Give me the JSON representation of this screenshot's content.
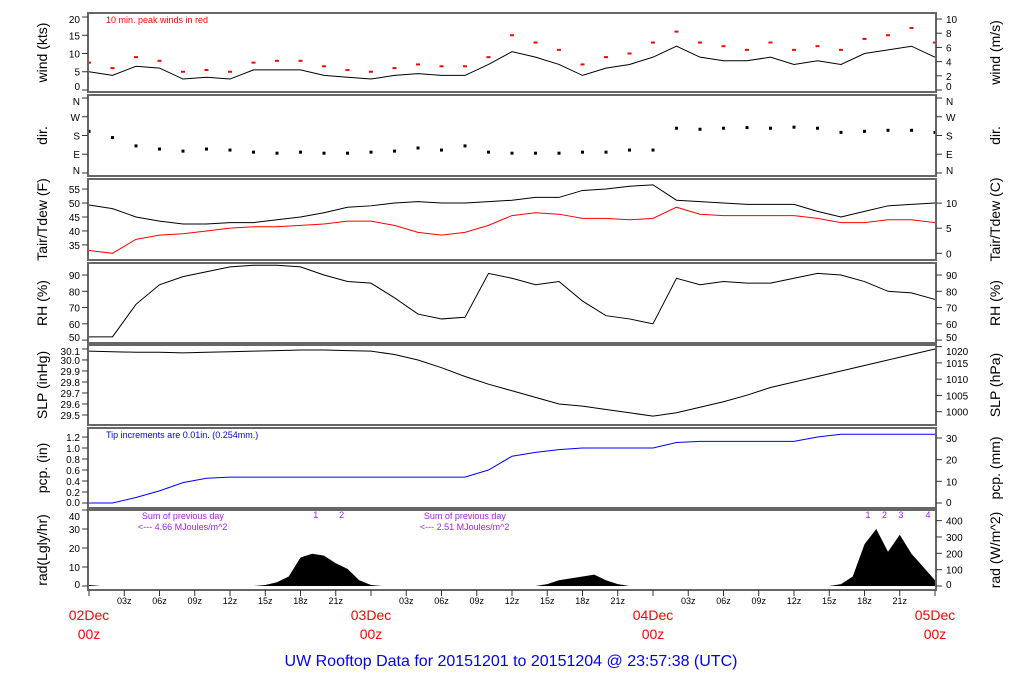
{
  "title": "UW Rooftop Data for 20151201  to  20151204 @ 23:57:38  (UTC)",
  "colors": {
    "title": "#0000ff",
    "dates": "#ff0000",
    "peak": "#ff0000",
    "dew": "#ff0000",
    "pcp": "#0000ff",
    "rad_note": "#a020f0",
    "line": "#000000"
  },
  "chart_data": {
    "type": "line",
    "x_unit": "hours since 02Dec 00z",
    "time_axis": {
      "dates": [
        {
          "h": 0,
          "date": "02Dec",
          "hour": "00z"
        },
        {
          "h": 24,
          "date": "03Dec",
          "hour": "00z"
        },
        {
          "h": 48,
          "date": "04Dec",
          "hour": "00z"
        },
        {
          "h": 72,
          "date": "05Dec",
          "hour": "00z"
        }
      ],
      "hour_ticks": [
        "03z",
        "06z",
        "09z",
        "12z",
        "15z",
        "18z",
        "21z"
      ]
    },
    "hours_2h": [
      0,
      2,
      4,
      6,
      8,
      10,
      12,
      14,
      16,
      18,
      20,
      22,
      24,
      26,
      28,
      30,
      32,
      34,
      36,
      38,
      40,
      42,
      44,
      46,
      48,
      50,
      52,
      54,
      56,
      58,
      60,
      62,
      64,
      66,
      68,
      70,
      72
    ],
    "panels": [
      {
        "key": "wind",
        "ylabel_left": "wind (kts)",
        "ylabel_right": "wind (m/s)",
        "ylim": [
          -0.55,
          21.1
        ],
        "ylim_right": [
          -0.28,
          10.85
        ],
        "ticks_left": [
          {
            "v": 0,
            "l": "0"
          },
          {
            "v": 5,
            "l": "5"
          },
          {
            "v": 10,
            "l": "10"
          },
          {
            "v": 15,
            "l": "15"
          },
          {
            "v": 20,
            "l": "20"
          }
        ],
        "ticks_right": [
          {
            "v": 0,
            "l": "0"
          },
          {
            "v": 2,
            "l": "2"
          },
          {
            "v": 4,
            "l": "4"
          },
          {
            "v": 6,
            "l": "6"
          },
          {
            "v": 8,
            "l": "8"
          },
          {
            "v": 10,
            "l": "10"
          }
        ],
        "note": "10 min. peak winds in red",
        "series": [
          {
            "style": "line",
            "color": "#000000",
            "values": [
              5,
              4,
              6.5,
              6,
              3,
              3.5,
              3,
              5.5,
              5.5,
              5.5,
              4,
              3.5,
              3,
              4,
              4.5,
              4,
              4,
              7,
              10.5,
              9,
              7,
              4,
              6,
              7,
              9,
              12,
              9,
              8,
              8,
              9,
              7,
              8,
              7,
              10,
              11,
              12,
              9
            ]
          },
          {
            "style": "dash",
            "color": "#ff0000",
            "values": [
              7.5,
              6,
              9,
              8,
              5,
              5.5,
              5,
              7.5,
              8,
              8,
              6.5,
              5.5,
              5,
              6,
              7,
              6.5,
              6.5,
              9,
              15,
              13,
              11,
              7,
              9,
              10,
              13,
              16,
              13,
              12,
              11,
              13,
              11,
              12,
              11,
              14,
              15,
              17,
              13
            ]
          }
        ]
      },
      {
        "key": "dir",
        "ylabel_left": "dir.",
        "ylabel_right": "dir.",
        "ylim": [
          -14.6,
          374.6
        ],
        "ylim_right": [
          -14.6,
          374.6
        ],
        "ticks_left": [
          {
            "v": 0,
            "l": "N"
          },
          {
            "v": 90,
            "l": "E"
          },
          {
            "v": 180,
            "l": "S"
          },
          {
            "v": 270,
            "l": "W"
          },
          {
            "v": 360,
            "l": "N"
          }
        ],
        "ticks_right": [
          {
            "v": 0,
            "l": "N"
          },
          {
            "v": 90,
            "l": "E"
          },
          {
            "v": 180,
            "l": "S"
          },
          {
            "v": 270,
            "l": "W"
          },
          {
            "v": 360,
            "l": "N"
          }
        ],
        "series": [
          {
            "style": "dots",
            "color": "#000000",
            "values": [
              200,
              170,
              130,
              115,
              105,
              115,
              110,
              100,
              95,
              100,
              95,
              95,
              100,
              105,
              120,
              110,
              130,
              100,
              95,
              95,
              95,
              100,
              100,
              110,
              110,
              215,
              210,
              215,
              218,
              215,
              220,
              215,
              195,
              200,
              205,
              205,
              195
            ]
          }
        ]
      },
      {
        "key": "temp",
        "ylabel_left": "Tair/Tdew (F)",
        "ylabel_right": "Tair/Tdew (C)",
        "ylim": [
          29.6,
          58.6
        ],
        "ylim_right": [
          -1.33,
          14.8
        ],
        "ticks_left": [
          {
            "v": 35,
            "l": "35"
          },
          {
            "v": 40,
            "l": "40"
          },
          {
            "v": 45,
            "l": "45"
          },
          {
            "v": 50,
            "l": "50"
          },
          {
            "v": 55,
            "l": "55"
          }
        ],
        "ticks_right": [
          {
            "v": 0,
            "l": "0"
          },
          {
            "v": 5,
            "l": "5"
          },
          {
            "v": 10,
            "l": "10"
          }
        ],
        "series": [
          {
            "name": "Tair",
            "style": "line",
            "color": "#000000",
            "values": [
              49.3,
              48,
              45,
              43.5,
              42.5,
              42.5,
              43,
              43,
              44,
              45,
              46.5,
              48.5,
              49,
              50,
              50.5,
              50,
              50,
              50.5,
              51,
              52,
              52,
              54.5,
              55,
              56,
              56.5,
              51,
              50.5,
              50,
              49.5,
              49.5,
              49.5,
              47,
              45,
              47,
              49,
              49.5,
              50
            ]
          },
          {
            "name": "Tdew",
            "style": "line",
            "color": "#ff0000",
            "values": [
              33,
              32,
              37,
              38.5,
              39,
              40,
              41,
              41.5,
              41.5,
              42,
              42.5,
              43.5,
              43.5,
              42,
              39.5,
              38.5,
              39.5,
              42,
              45.5,
              46.5,
              46,
              44.5,
              44.5,
              44,
              44.5,
              48.5,
              46,
              45.5,
              45.5,
              45.5,
              45.5,
              44.5,
              43,
              43,
              44,
              44,
              43
            ]
          }
        ]
      },
      {
        "key": "rh",
        "ylabel_left": "RH (%)",
        "ylabel_right": "RH (%)",
        "ylim": [
          48.2,
          97.4
        ],
        "ylim_right": [
          48.2,
          97.4
        ],
        "ticks_left": [
          {
            "v": 50,
            "l": "50"
          },
          {
            "v": 60,
            "l": "60"
          },
          {
            "v": 70,
            "l": "70"
          },
          {
            "v": 80,
            "l": "80"
          },
          {
            "v": 90,
            "l": "90"
          }
        ],
        "ticks_right": [
          {
            "v": 50,
            "l": "50"
          },
          {
            "v": 60,
            "l": "60"
          },
          {
            "v": 70,
            "l": "70"
          },
          {
            "v": 80,
            "l": "80"
          },
          {
            "v": 90,
            "l": "90"
          }
        ],
        "series": [
          {
            "style": "line",
            "color": "#000000",
            "values": [
              52,
              52,
              72,
              84,
              89,
              92,
              95,
              96,
              96,
              95,
              90,
              86,
              85,
              76,
              66,
              63,
              64,
              91,
              88,
              84,
              86,
              74,
              65,
              63,
              60,
              88,
              84,
              86,
              85,
              85,
              88,
              91,
              90,
              86,
              80,
              79,
              75
            ]
          }
        ]
      },
      {
        "key": "slp",
        "ylabel_left": "SLP (inHg)",
        "ylabel_right": "SLP (hPa)",
        "ylim": [
          29.409,
          30.136
        ],
        "ylim_right": [
          995.9,
          1020.5
        ],
        "ticks_left": [
          {
            "v": 29.5,
            "l": "29.5"
          },
          {
            "v": 29.6,
            "l": "29.6"
          },
          {
            "v": 29.7,
            "l": "29.7"
          },
          {
            "v": 29.8,
            "l": "29.8"
          },
          {
            "v": 29.9,
            "l": "29.9"
          },
          {
            "v": 30.0,
            "l": "30.0"
          },
          {
            "v": 30.1,
            "l": "30.1"
          }
        ],
        "ticks_right": [
          {
            "v": 1000,
            "l": "1000"
          },
          {
            "v": 1005,
            "l": "1005"
          },
          {
            "v": 1010,
            "l": "1010"
          },
          {
            "v": 1015,
            "l": "1015"
          },
          {
            "v": 1020,
            "l": "1020"
          }
        ],
        "series": [
          {
            "style": "line",
            "color": "#000000",
            "values": [
              30.08,
              30.075,
              30.07,
              30.07,
              30.065,
              30.07,
              30.075,
              30.08,
              30.085,
              30.09,
              30.09,
              30.085,
              30.08,
              30.05,
              30.0,
              29.93,
              29.85,
              29.78,
              29.72,
              29.66,
              29.6,
              29.58,
              29.55,
              29.52,
              29.49,
              29.52,
              29.57,
              29.62,
              29.68,
              29.75,
              29.8,
              29.85,
              29.9,
              29.95,
              30.0,
              30.05,
              30.1
            ]
          }
        ]
      },
      {
        "key": "pcp",
        "ylabel_left": "pcp. (in)",
        "ylabel_right": "pcp. (mm)",
        "ylim": [
          -0.091,
          1.364
        ],
        "ylim_right": [
          -2.31,
          34.6
        ],
        "ticks_left": [
          {
            "v": 0,
            "l": "0.0"
          },
          {
            "v": 0.2,
            "l": "0.2"
          },
          {
            "v": 0.4,
            "l": "0.4"
          },
          {
            "v": 0.6,
            "l": "0.6"
          },
          {
            "v": 0.8,
            "l": "0.8"
          },
          {
            "v": 1.0,
            "l": "1.0"
          },
          {
            "v": 1.2,
            "l": "1.2"
          }
        ],
        "ticks_right": [
          {
            "v": 0,
            "l": "0"
          },
          {
            "v": 10,
            "l": "10"
          },
          {
            "v": 20,
            "l": "20"
          },
          {
            "v": 30,
            "l": "30"
          }
        ],
        "note": "Tip increments are 0.01in. (0.254mm.)",
        "series": [
          {
            "style": "line",
            "color": "#0000ff",
            "values": [
              0,
              0,
              0.1,
              0.22,
              0.37,
              0.45,
              0.47,
              0.47,
              0.47,
              0.47,
              0.47,
              0.47,
              0.47,
              0.47,
              0.47,
              0.47,
              0.47,
              0.6,
              0.85,
              0.92,
              0.97,
              1.0,
              1.0,
              1.0,
              1.0,
              1.1,
              1.12,
              1.12,
              1.12,
              1.12,
              1.12,
              1.2,
              1.25,
              1.25,
              1.25,
              1.25,
              1.25
            ]
          }
        ]
      },
      {
        "key": "rad",
        "ylabel_left": "rad(Lgly/hr)",
        "ylabel_right": "rad (W/m^2)",
        "ylim": [
          -2.1,
          40
        ],
        "ylim_right": [
          -24.4,
          465
        ],
        "ticks_left": [
          {
            "v": 0,
            "l": "0"
          },
          {
            "v": 10,
            "l": "10"
          },
          {
            "v": 20,
            "l": "20"
          },
          {
            "v": 30,
            "l": "30"
          },
          {
            "v": 40,
            "l": "40"
          }
        ],
        "ticks_right": [
          {
            "v": 0,
            "l": "0"
          },
          {
            "v": 100,
            "l": "100"
          },
          {
            "v": 200,
            "l": "200"
          },
          {
            "v": 300,
            "l": "300"
          },
          {
            "v": 400,
            "l": "400"
          }
        ],
        "hourly": true,
        "series": [
          {
            "style": "area",
            "color": "#000000",
            "values": [
              0.5,
              0,
              0,
              0,
              0,
              0,
              0,
              0,
              0,
              0,
              0,
              0,
              0,
              0,
              0,
              0.5,
              2,
              5,
              15,
              17,
              16,
              12,
              9,
              3,
              0.5,
              0,
              0,
              0,
              0,
              0,
              0,
              0,
              0,
              0,
              0,
              0,
              0,
              0,
              0,
              1,
              3,
              4,
              5,
              6,
              3,
              1,
              0,
              0,
              0,
              0,
              0,
              0,
              0,
              0,
              0,
              0,
              0,
              0,
              0,
              0,
              0,
              0,
              0,
              0,
              1,
              5,
              22,
              30,
              18,
              27,
              17,
              10,
              3
            ]
          }
        ],
        "day_sums": [
          {
            "h": 4.5,
            "line1": "Sum of previous day",
            "line2": "<--- 4.66 MJoules/m^2"
          },
          {
            "h": 28.5,
            "line1": "Sum of previous day",
            "line2": "<--- 2.51 MJoules/m^2"
          }
        ],
        "markers": [
          {
            "h": 19.3,
            "l": "1"
          },
          {
            "h": 21.5,
            "l": "2"
          },
          {
            "h": 66.3,
            "l": "1"
          },
          {
            "h": 67.7,
            "l": "2"
          },
          {
            "h": 69.1,
            "l": "3"
          },
          {
            "h": 71.4,
            "l": "4"
          }
        ]
      }
    ]
  }
}
